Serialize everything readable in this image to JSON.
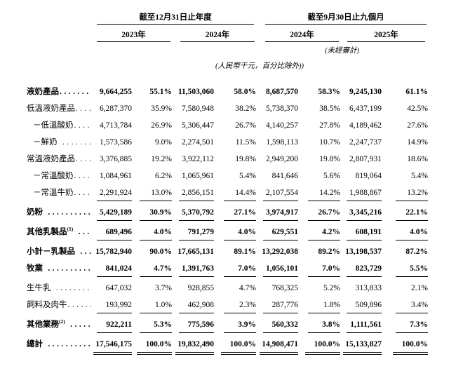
{
  "header": {
    "group1": "截至12月31日止年度",
    "group2": "截至9月30日止九個月",
    "years": [
      "2023年",
      "2024年",
      "2024年",
      "2025年"
    ],
    "unaudited_note": "(未經審計)",
    "currency_note": "(人民幣千元，百分比除外))"
  },
  "rows": [
    {
      "label": "液奶產品",
      "sup": "",
      "leader": "........",
      "indent": false,
      "bold": true,
      "rule": "none",
      "values": [
        "9,664,255",
        "55.1%",
        "11,503,060",
        "58.0%",
        "8,687,570",
        "58.3%",
        "9,245,130",
        "61.1%"
      ]
    },
    {
      "label": "低溫液奶產品",
      "sup": "",
      "leader": "....",
      "indent": false,
      "bold": false,
      "rule": "none",
      "values": [
        "6,287,370",
        "35.9%",
        "7,580,948",
        "38.2%",
        "5,738,370",
        "38.5%",
        "6,437,199",
        "42.5%"
      ]
    },
    {
      "label": "－低溫酸奶",
      "sup": "",
      "leader": "....",
      "indent": true,
      "bold": false,
      "rule": "none",
      "values": [
        "4,713,784",
        "26.9%",
        "5,306,447",
        "26.7%",
        "4,140,257",
        "27.8%",
        "4,189,462",
        "27.6%"
      ]
    },
    {
      "label": "－鮮奶",
      "sup": "",
      "leader": " .......",
      "indent": true,
      "bold": false,
      "rule": "none",
      "values": [
        "1,573,586",
        "9.0%",
        "2,274,501",
        "11.5%",
        "1,598,113",
        "10.7%",
        "2,247,737",
        "14.9%"
      ]
    },
    {
      "label": "常溫液奶產品",
      "sup": "",
      "leader": "....",
      "indent": false,
      "bold": false,
      "rule": "none",
      "values": [
        "3,376,885",
        "19.2%",
        "3,922,112",
        "19.8%",
        "2,949,200",
        "19.8%",
        "2,807,931",
        "18.6%"
      ]
    },
    {
      "label": "－常溫酸奶",
      "sup": "",
      "leader": "....",
      "indent": true,
      "bold": false,
      "rule": "none",
      "values": [
        "1,084,961",
        "6.2%",
        "1,065,961",
        "5.4%",
        "841,646",
        "5.6%",
        "819,064",
        "5.4%"
      ]
    },
    {
      "label": "－常溫牛奶",
      "sup": "",
      "leader": "....",
      "indent": true,
      "bold": false,
      "rule": "single",
      "values": [
        "2,291,924",
        "13.0%",
        "2,856,151",
        "14.4%",
        "2,107,554",
        "14.2%",
        "1,988,867",
        "13.2%"
      ]
    },
    {
      "label": "奶粉",
      "sup": "",
      "leader": " ..........",
      "indent": false,
      "bold": true,
      "rule": "single",
      "values": [
        "5,429,189",
        "30.9%",
        "5,370,792",
        "27.1%",
        "3,974,917",
        "26.7%",
        "3,345,216",
        "22.1%"
      ]
    },
    {
      "label": "其他乳製品",
      "sup": "(1)",
      "leader": " ....",
      "indent": false,
      "bold": true,
      "rule": "single",
      "values": [
        "689,496",
        "4.0%",
        "791,279",
        "4.0%",
        "629,551",
        "4.2%",
        "608,191",
        "4.0%"
      ]
    },
    {
      "label": "小計－乳製品",
      "sup": "",
      "leader": " ...",
      "indent": false,
      "bold": true,
      "rule": "none",
      "values": [
        "15,782,940",
        "90.0%",
        "17,665,131",
        "89.1%",
        "13,292,038",
        "89.2%",
        "13,198,537",
        "87.2%"
      ]
    },
    {
      "label": "牧業",
      "sup": "",
      "leader": " ..........",
      "indent": false,
      "bold": true,
      "rule": "single",
      "values": [
        "841,024",
        "4.7%",
        "1,391,763",
        "7.0%",
        "1,056,101",
        "7.0%",
        "823,729",
        "5.5%"
      ]
    },
    {
      "label": "生牛乳",
      "sup": "",
      "leader": " .........",
      "indent": false,
      "bold": false,
      "rule": "none",
      "values": [
        "647,032",
        "3.7%",
        "928,855",
        "4.7%",
        "768,325",
        "5.2%",
        "313,833",
        "2.1%"
      ]
    },
    {
      "label": "飼料及肉牛",
      "sup": "",
      "leader": "......",
      "indent": false,
      "bold": false,
      "rule": "single",
      "values": [
        "193,992",
        "1.0%",
        "462,908",
        "2.3%",
        "287,776",
        "1.8%",
        "509,896",
        "3.4%"
      ]
    },
    {
      "label": "其他業務",
      "sup": "(2)",
      "leader": " ......",
      "indent": false,
      "bold": true,
      "rule": "single",
      "values": [
        "922,211",
        "5.3%",
        "775,596",
        "3.9%",
        "560,332",
        "3.8%",
        "1,111,561",
        "7.3%"
      ]
    },
    {
      "label": "總計",
      "sup": "",
      "leader": " ..........",
      "indent": false,
      "bold": true,
      "rule": "double",
      "values": [
        "17,546,175",
        "100.0%",
        "19,832,490",
        "100.0%",
        "14,908,471",
        "100.0%",
        "15,133,827",
        "100.0%"
      ]
    }
  ]
}
